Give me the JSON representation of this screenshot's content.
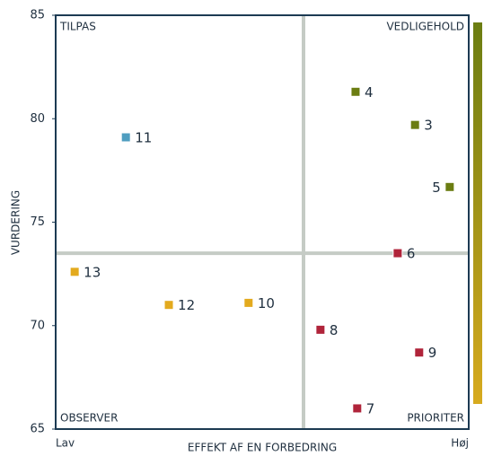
{
  "chart_data": {
    "type": "scatter",
    "y_axis_label": "VURDERING",
    "x_axis_label": "EFFEKT AF EN FORBEDRING",
    "x_axis_end_labels": [
      "Lav",
      "Høj"
    ],
    "quadrant_labels": {
      "top_left": "TILPAS",
      "top_right": "VEDLIGEHOLD",
      "bottom_left": "OBSERVER",
      "bottom_right": "PRIORITER"
    },
    "xlim": [
      0,
      100
    ],
    "ylim": [
      65,
      85
    ],
    "yticks": [
      65,
      70,
      75,
      80,
      85
    ],
    "x_threshold": 60,
    "y_threshold": 73.5,
    "labels": [
      "4",
      "3",
      "5",
      "6",
      "11",
      "13",
      "12",
      "10",
      "8",
      "9",
      "7"
    ],
    "x": [
      72.6,
      87,
      95.4,
      82.8,
      17,
      4.6,
      27.4,
      46.7,
      64.1,
      88,
      73
    ],
    "values": [
      81.3,
      79.7,
      76.7,
      73.5,
      79.1,
      72.6,
      71.0,
      71.1,
      69.8,
      68.7,
      66.0
    ],
    "colors": [
      "#6b7d12",
      "#6b7d12",
      "#6b7d12",
      "#b0243a",
      "#4f9ec0",
      "#e3aa1e",
      "#e3aa1e",
      "#e3aa1e",
      "#b0243a",
      "#b0243a",
      "#b0243a"
    ]
  }
}
